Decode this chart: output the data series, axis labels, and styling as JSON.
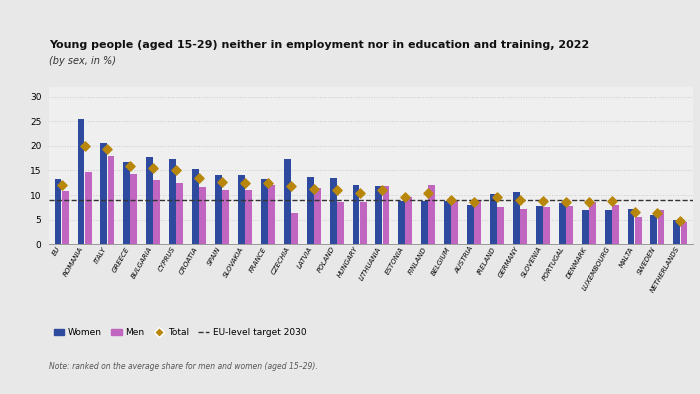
{
  "title": "Young people (aged 15-29) neither in employment nor in education and training, 2022",
  "subtitle": "(by sex, in %)",
  "note": "Note: ranked on the average share for men and women (aged 15–29).",
  "categories": [
    "EU",
    "ROMANIA",
    "ITALY",
    "GREECE",
    "BULGARIA",
    "CYPRUS",
    "CROATIA",
    "SPAIN",
    "SLOVAKIA",
    "FRANCE",
    "CZECHIA",
    "LATVIA",
    "POLAND",
    "HUNGARY",
    "LITHUANIA",
    "ESTONIA",
    "FINLAND",
    "BELGIUM",
    "AUSTRIA",
    "IRELAND",
    "GERMANY",
    "SLOVENIA",
    "PORTUGAL",
    "DENMARK",
    "LUXEMBOURG",
    "MALTA",
    "SWEDEN",
    "NETHERLANDS"
  ],
  "women": [
    13.2,
    25.5,
    20.6,
    16.8,
    17.8,
    17.3,
    15.2,
    14.0,
    14.0,
    13.2,
    17.3,
    13.7,
    13.5,
    12.0,
    11.8,
    8.8,
    8.8,
    8.8,
    8.0,
    10.3,
    10.6,
    7.8,
    8.3,
    7.0,
    6.9,
    7.2,
    6.0,
    5.0
  ],
  "men": [
    10.8,
    14.6,
    18.0,
    14.2,
    13.0,
    12.5,
    11.7,
    11.0,
    11.0,
    12.0,
    6.4,
    11.5,
    8.5,
    8.5,
    11.8,
    9.7,
    12.0,
    9.0,
    8.8,
    7.5,
    7.2,
    7.5,
    7.8,
    8.5,
    8.0,
    5.5,
    7.0,
    4.5
  ],
  "total": [
    12.0,
    20.0,
    19.3,
    15.8,
    15.5,
    15.0,
    13.5,
    12.7,
    12.5,
    12.5,
    11.8,
    11.2,
    11.0,
    10.5,
    11.0,
    9.5,
    10.5,
    9.0,
    8.5,
    9.5,
    9.0,
    8.8,
    8.5,
    8.5,
    8.7,
    6.5,
    6.3,
    4.8
  ],
  "eu_target": 9.0,
  "ylim": [
    0,
    32
  ],
  "yticks": [
    0,
    5,
    10,
    15,
    20,
    25,
    30
  ],
  "color_women": "#2E4A9E",
  "color_men": "#C066C0",
  "color_total": "#B8860B",
  "color_target": "#333333",
  "bg_color": "#e8e8e8",
  "plot_bg_color": "#efefef",
  "grid_color": "#cccccc"
}
